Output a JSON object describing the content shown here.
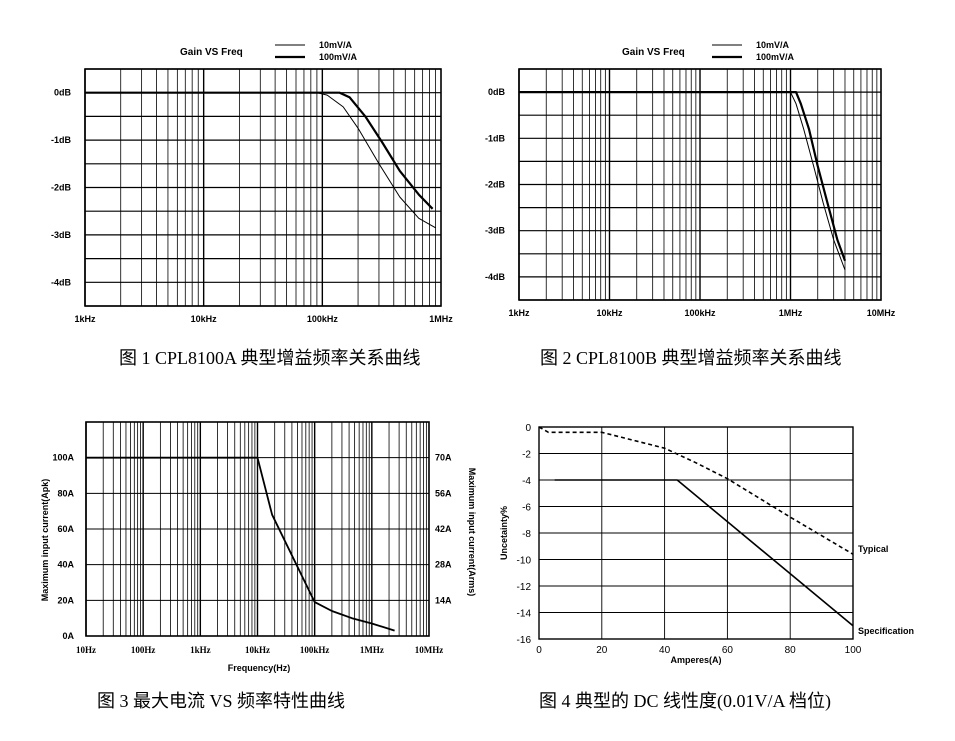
{
  "captions": [
    "图 1 CPL8100A 典型增益频率关系曲线",
    "图 2 CPL8100B 典型增益频率关系曲线",
    "图 3 最大电流 VS 频率特性曲线",
    "图 4 典型的 DC 线性度(0.01V/A 档位)"
  ],
  "chart_data": [
    {
      "type": "line",
      "title": "Gain VS Freq",
      "xscale": "log",
      "xlim": [
        1000,
        1000000
      ],
      "ylim": [
        -4.5,
        0.5
      ],
      "x_tick_values": [
        1000,
        10000,
        100000,
        1000000
      ],
      "x_tick_labels": [
        "1kHz",
        "10kHz",
        "100kHz",
        "1MHz"
      ],
      "y_tick_values": [
        0,
        -1,
        -2,
        -3,
        -4
      ],
      "y_tick_labels": [
        "0dB",
        "-1dB",
        "-2dB",
        "-3dB",
        "-4dB"
      ],
      "grid": true,
      "legend_position": "top-center",
      "series": [
        {
          "name": "10mV/A",
          "style": "thin",
          "x": [
            1000,
            90000,
            110000,
            150000,
            200000,
            300000,
            450000,
            650000,
            900000
          ],
          "y": [
            0,
            0,
            -0.05,
            -0.3,
            -0.75,
            -1.5,
            -2.2,
            -2.65,
            -2.85
          ]
        },
        {
          "name": "100mV/A",
          "style": "thick",
          "x": [
            1000,
            140000,
            170000,
            230000,
            320000,
            450000,
            650000,
            850000
          ],
          "y": [
            0,
            0,
            -0.1,
            -0.5,
            -1.05,
            -1.65,
            -2.15,
            -2.45
          ]
        }
      ]
    },
    {
      "type": "line",
      "title": "Gain VS Freq",
      "xscale": "log",
      "xlim": [
        1000,
        10000000
      ],
      "ylim": [
        -4.5,
        0.5
      ],
      "x_tick_values": [
        1000,
        10000,
        100000,
        1000000,
        10000000
      ],
      "x_tick_labels": [
        "1kHz",
        "10kHz",
        "100kHz",
        "1MHz",
        "10MHz"
      ],
      "y_tick_values": [
        0,
        -1,
        -2,
        -3,
        -4
      ],
      "y_tick_labels": [
        "0dB",
        "-1dB",
        "-2dB",
        "-3dB",
        "-4dB"
      ],
      "grid": true,
      "legend_position": "top-center",
      "series": [
        {
          "name": "10mV/A",
          "style": "thin",
          "x": [
            1000,
            1000000,
            1150000,
            1400000,
            1800000,
            2300000,
            3000000,
            4000000
          ],
          "y": [
            0,
            0,
            -0.25,
            -0.8,
            -1.6,
            -2.4,
            -3.2,
            -3.85
          ]
        },
        {
          "name": "100mV/A",
          "style": "thick",
          "x": [
            1000,
            1150000,
            1300000,
            1600000,
            2000000,
            2600000,
            3300000,
            4000000
          ],
          "y": [
            0,
            0,
            -0.25,
            -0.8,
            -1.6,
            -2.45,
            -3.2,
            -3.65
          ]
        }
      ]
    },
    {
      "type": "line",
      "title": "",
      "xscale": "log",
      "xlim": [
        10,
        10000000
      ],
      "ylim": [
        0,
        120
      ],
      "xlabel": "Frequency(Hz)",
      "ylabel": "Maximum input current(Apk)",
      "y2label": "Maximum input current(Arms)",
      "x_tick_values": [
        10,
        100,
        1000,
        10000,
        100000,
        1000000,
        10000000
      ],
      "x_tick_labels": [
        "10Hz",
        "100Hz",
        "1kHz",
        "10kHz",
        "100kHz",
        "1MHz",
        "10MHz"
      ],
      "y_tick_values": [
        0,
        20,
        40,
        60,
        80,
        100
      ],
      "y_tick_labels": [
        "0A",
        "20A",
        "40A",
        "60A",
        "80A",
        "100A"
      ],
      "y2_tick_values": [
        20,
        40,
        60,
        80,
        100
      ],
      "y2_tick_labels": [
        "14A",
        "28A",
        "42A",
        "56A",
        "70A"
      ],
      "grid": true,
      "series": [
        {
          "name": "",
          "x": [
            10,
            10000,
            18000,
            100000,
            200000,
            450000,
            1000000,
            2500000
          ],
          "y": [
            100,
            100,
            68,
            19,
            14,
            10,
            7,
            3
          ]
        }
      ]
    },
    {
      "type": "line",
      "title": "",
      "xlabel": "Amperes(A)",
      "ylabel": "Uncetainty%",
      "xlim": [
        0,
        100
      ],
      "ylim": [
        -16,
        0
      ],
      "x_tick_values": [
        0,
        20,
        40,
        60,
        80,
        100
      ],
      "x_tick_labels": [
        "0",
        "20",
        "40",
        "60",
        "80",
        "100"
      ],
      "y_tick_values": [
        0,
        -2,
        -4,
        -6,
        -8,
        -10,
        -12,
        -14,
        -16
      ],
      "y_tick_labels": [
        "0",
        "-2",
        "-4",
        "-6",
        "-8",
        "-10",
        "-12",
        "-14",
        "-16"
      ],
      "grid": true,
      "series": [
        {
          "name": "Typical",
          "style": "dashed",
          "x": [
            0,
            3,
            20,
            40,
            50,
            60,
            80,
            100
          ],
          "y": [
            0,
            -0.4,
            -0.4,
            -1.6,
            -2.7,
            -3.9,
            -6.8,
            -9.6
          ]
        },
        {
          "name": "Specification",
          "style": "solid",
          "x": [
            5,
            44,
            100
          ],
          "y": [
            -4,
            -4,
            -15
          ]
        }
      ]
    }
  ]
}
